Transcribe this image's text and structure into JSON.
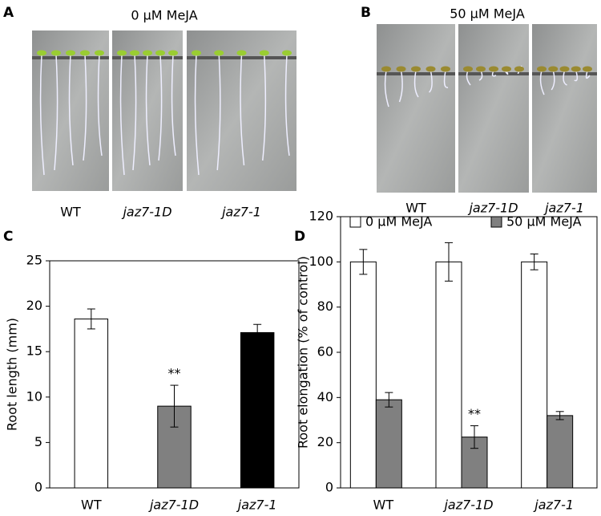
{
  "photos": [
    {
      "label": "A",
      "title": "0 μM MeJA",
      "lanes": [
        "WT",
        "jaz7-1D",
        "jaz7-1"
      ]
    },
    {
      "label": "B",
      "title": "50 μM MeJA",
      "lanes": [
        "WT",
        "jaz7-1D",
        "jaz7-1"
      ]
    }
  ],
  "chart_data": [
    {
      "type": "bar",
      "label": "C",
      "ylabel": "Root length (mm)",
      "categories": [
        "WT",
        "jaz7-1D",
        "jaz7-1"
      ],
      "values": [
        18.6,
        9.0,
        17.1
      ],
      "errors": [
        1.1,
        2.3,
        0.9
      ],
      "colors": [
        "#ffffff",
        "#808080",
        "#000000"
      ],
      "ylim": [
        0,
        25
      ],
      "yticks": [
        0,
        5,
        10,
        15,
        20,
        25
      ],
      "annotation": "**"
    },
    {
      "type": "grouped-bar",
      "label": "D",
      "ylabel": "Root elongation (% of control)",
      "categories": [
        "WT",
        "jaz7-1D",
        "jaz7-1"
      ],
      "series": [
        {
          "name": "0 μM MeJA",
          "color": "#ffffff",
          "values": [
            100,
            100,
            100
          ],
          "errors": [
            5.5,
            8.5,
            3.5
          ]
        },
        {
          "name": "50 μM MeJA",
          "color": "#808080",
          "values": [
            39,
            22.5,
            32
          ],
          "errors": [
            3.2,
            5,
            1.8
          ]
        }
      ],
      "ylim": [
        0,
        120
      ],
      "yticks": [
        0,
        20,
        40,
        60,
        80,
        100,
        120
      ],
      "annotation": "**"
    }
  ]
}
